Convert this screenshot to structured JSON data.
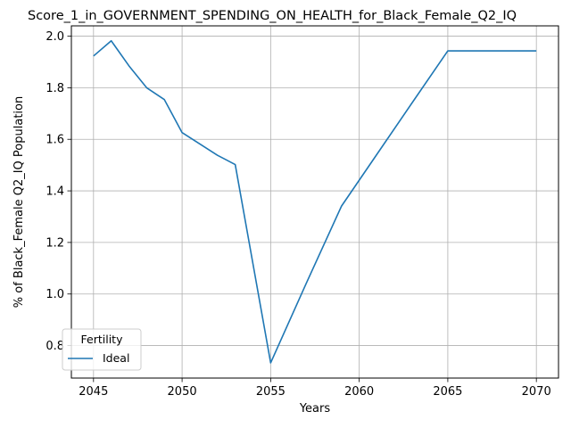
{
  "chart_data": {
    "type": "line",
    "title": "Score_1_in_GOVERNMENT_SPENDING_ON_HEALTH_for_Black_Female_Q2_IQ",
    "xlabel": "Years",
    "ylabel": "% of Black_Female Q2_IQ Population",
    "xlim": [
      2043.75,
      2071.25
    ],
    "ylim": [
      0.674,
      2.04
    ],
    "xticks": [
      2045,
      2050,
      2055,
      2060,
      2065,
      2070
    ],
    "yticks": [
      0.8,
      1.0,
      1.2,
      1.4,
      1.6,
      1.8,
      2.0
    ],
    "grid": true,
    "legend": {
      "title": "Fertility",
      "placement": "lower-left"
    },
    "series": [
      {
        "name": "Ideal",
        "color": "#1f77b4",
        "x": [
          2045,
          2046,
          2047,
          2048,
          2049,
          2050,
          2051,
          2052,
          2053,
          2055,
          2057,
          2059,
          2061,
          2063,
          2065,
          2066,
          2067,
          2068,
          2069,
          2070
        ],
        "y": [
          1.923,
          1.982,
          1.885,
          1.8,
          1.754,
          1.626,
          1.582,
          1.538,
          1.502,
          0.733,
          1.04,
          1.341,
          1.542,
          1.743,
          1.943,
          1.943,
          1.943,
          1.943,
          1.943,
          1.943
        ]
      }
    ]
  }
}
